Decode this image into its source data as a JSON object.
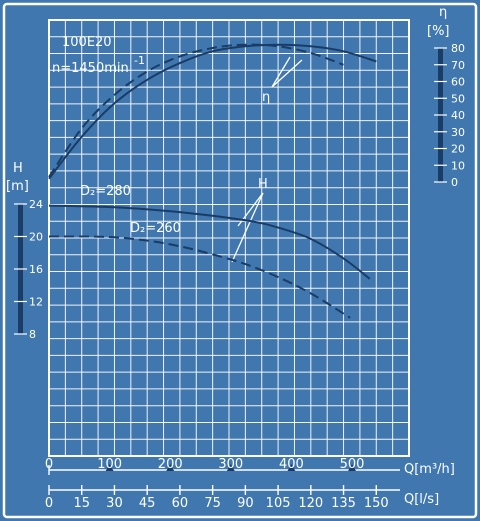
{
  "chart_data": {
    "type": "line",
    "texts": {
      "model": "100E20",
      "speed": "n=1450min",
      "speed_sup": "-1",
      "eta_label": "η",
      "eta_unit": "[%]",
      "H_label": "H",
      "H_unit": "[m]",
      "d280": "D₂=280",
      "d260": "D₂=260",
      "H_callout": "H",
      "eta_callout": "η",
      "q_m3_label": "Q[m³/h]",
      "q_ls_label": "Q[l/s]"
    },
    "axes": {
      "q_m3_ticks": [
        "0",
        "100",
        "200",
        "300",
        "400",
        "500"
      ],
      "q_ls_ticks": [
        "0",
        "15",
        "30",
        "45",
        "60",
        "75",
        "90",
        "105",
        "120",
        "135",
        "150"
      ],
      "eta_ticks": [
        "0",
        "10",
        "20",
        "30",
        "40",
        "50",
        "60",
        "70",
        "80"
      ],
      "H_ticks": [
        "8",
        "12",
        "16",
        "20",
        "24"
      ],
      "q_ls_range": [
        0,
        165
      ],
      "eta_range": [
        0,
        80
      ],
      "H_range": [
        8,
        24
      ],
      "grid": true
    },
    "series": [
      {
        "name": "D₂=280",
        "kind": "H",
        "style": "solid",
        "x": [
          0,
          30,
          60,
          90,
          105,
          120,
          135,
          147
        ],
        "y": [
          23.8,
          23.6,
          23.0,
          22.0,
          21.1,
          19.7,
          17.3,
          14.8
        ]
      },
      {
        "name": "D₂=260",
        "kind": "H",
        "style": "dashed",
        "x": [
          0,
          15,
          30,
          45,
          60,
          75,
          90,
          105,
          120,
          138
        ],
        "y": [
          20.0,
          20.0,
          19.9,
          19.5,
          18.8,
          17.8,
          16.6,
          15.0,
          13.0,
          10.0
        ]
      },
      {
        "name": "",
        "kind": "eta",
        "style": "solid",
        "x": [
          0,
          15,
          30,
          45,
          60,
          75,
          90,
          105,
          120,
          135,
          150
        ],
        "y": [
          2,
          27,
          47,
          61,
          71,
          78,
          81,
          82,
          81,
          78,
          72
        ]
      },
      {
        "name": "",
        "kind": "eta",
        "style": "dashed",
        "x": [
          0,
          15,
          30,
          45,
          60,
          75,
          90,
          105,
          120,
          135
        ],
        "y": [
          3,
          32,
          52,
          66,
          75,
          80,
          82,
          81,
          77,
          70
        ]
      }
    ]
  }
}
